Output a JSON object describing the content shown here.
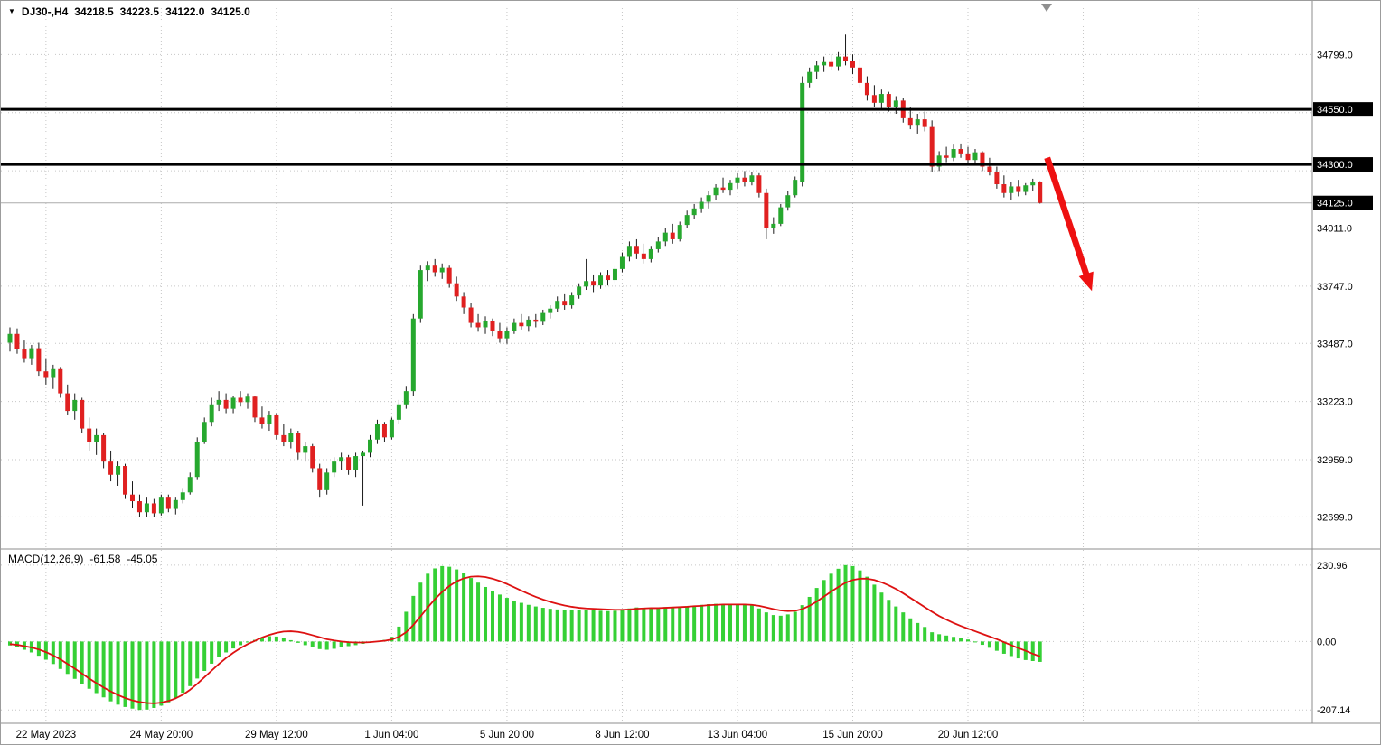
{
  "title_bar": {
    "dropdown_icon": "▼",
    "symbol_timeframe": "DJ30-,H4",
    "open": "34218.5",
    "high": "34223.5",
    "low": "34122.0",
    "close": "34125.0"
  },
  "macd_label": {
    "name": "MACD(12,26,9)",
    "macd_value": "-61.58",
    "signal_value": "-45.05"
  },
  "colors": {
    "bull": "#26a82e",
    "bear": "#e02020",
    "wick": "#1a1a1a",
    "hist": "#35d035",
    "signal_line": "#dd1111",
    "grid": "#c6c6c6",
    "hline": "#000000",
    "badge_bg": "#000000",
    "badge_text": "#ffffff",
    "axis_text": "#000000",
    "current_price_line": "#ababab",
    "arrow": "#ee1111",
    "border": "#8c8c8c"
  },
  "chart_data": {
    "type": "candlestick",
    "symbol": "DJ30-",
    "timeframe": "H4",
    "title": "DJ30-,H4 34218.5 34223.5 34122.0 34125.0",
    "price_axis": {
      "ylim": [
        32565,
        35010
      ],
      "tick_labels": [
        34799.0,
        34011.0,
        33747.0,
        33487.0,
        33223.0,
        32959.0,
        32699.0
      ],
      "grid_levels": [
        34799,
        34535,
        34271,
        34011,
        33747,
        33487,
        33223,
        32959,
        32699
      ],
      "badge_levels": [
        34550.0,
        34300.0,
        34125.0
      ]
    },
    "levels": {
      "resistance": 34550.0,
      "support": 34300.0,
      "current_price": 34125.0
    },
    "time_axis": {
      "tick_labels": [
        "22 May 2023",
        "24 May 20:00",
        "29 May 12:00",
        "1 Jun 04:00",
        "5 Jun 20:00",
        "8 Jun 12:00",
        "13 Jun 04:00",
        "15 Jun 20:00",
        "20 Jun 12:00"
      ],
      "tick_bars": [
        5,
        21,
        37,
        53,
        69,
        85,
        101,
        117,
        133
      ],
      "future_grid_bars": [
        149,
        165
      ]
    },
    "candles": [
      [
        33490,
        33560,
        33450,
        33530
      ],
      [
        33530,
        33555,
        33440,
        33460
      ],
      [
        33460,
        33500,
        33400,
        33420
      ],
      [
        33420,
        33480,
        33390,
        33465
      ],
      [
        33465,
        33490,
        33340,
        33360
      ],
      [
        33360,
        33420,
        33300,
        33330
      ],
      [
        33330,
        33390,
        33280,
        33370
      ],
      [
        33370,
        33380,
        33240,
        33260
      ],
      [
        33260,
        33300,
        33160,
        33180
      ],
      [
        33180,
        33260,
        33140,
        33230
      ],
      [
        33230,
        33240,
        33080,
        33100
      ],
      [
        33100,
        33150,
        33000,
        33040
      ],
      [
        33040,
        33100,
        32980,
        33070
      ],
      [
        33070,
        33080,
        32920,
        32950
      ],
      [
        32950,
        33000,
        32860,
        32890
      ],
      [
        32890,
        32950,
        32840,
        32930
      ],
      [
        32930,
        32940,
        32780,
        32800
      ],
      [
        32800,
        32860,
        32740,
        32770
      ],
      [
        32770,
        32800,
        32700,
        32720
      ],
      [
        32720,
        32790,
        32699,
        32760
      ],
      [
        32760,
        32780,
        32700,
        32715
      ],
      [
        32715,
        32800,
        32705,
        32790
      ],
      [
        32790,
        32800,
        32720,
        32735
      ],
      [
        32735,
        32790,
        32710,
        32775
      ],
      [
        32775,
        32830,
        32760,
        32810
      ],
      [
        32810,
        32900,
        32800,
        32880
      ],
      [
        32880,
        33060,
        32870,
        33040
      ],
      [
        33040,
        33150,
        33030,
        33130
      ],
      [
        33130,
        33240,
        33110,
        33210
      ],
      [
        33210,
        33270,
        33180,
        33230
      ],
      [
        33230,
        33260,
        33170,
        33190
      ],
      [
        33190,
        33250,
        33170,
        33240
      ],
      [
        33240,
        33270,
        33200,
        33220
      ],
      [
        33220,
        33260,
        33190,
        33245
      ],
      [
        33245,
        33250,
        33130,
        33150
      ],
      [
        33150,
        33200,
        33100,
        33120
      ],
      [
        33120,
        33180,
        33090,
        33160
      ],
      [
        33160,
        33170,
        33050,
        33070
      ],
      [
        33070,
        33120,
        33020,
        33040
      ],
      [
        33040,
        33100,
        33010,
        33080
      ],
      [
        33080,
        33090,
        32960,
        32990
      ],
      [
        32990,
        33040,
        32950,
        33020
      ],
      [
        33020,
        33030,
        32900,
        32920
      ],
      [
        32920,
        32940,
        32790,
        32820
      ],
      [
        32820,
        32920,
        32800,
        32900
      ],
      [
        32900,
        32970,
        32880,
        32950
      ],
      [
        32950,
        32990,
        32910,
        32970
      ],
      [
        32970,
        32980,
        32890,
        32910
      ],
      [
        32910,
        32990,
        32880,
        32975
      ],
      [
        32975,
        33000,
        32750,
        32990
      ],
      [
        32990,
        33070,
        32970,
        33050
      ],
      [
        33050,
        33140,
        33030,
        33120
      ],
      [
        33120,
        33130,
        33040,
        33060
      ],
      [
        33060,
        33150,
        33050,
        33140
      ],
      [
        33140,
        33230,
        33120,
        33210
      ],
      [
        33210,
        33290,
        33190,
        33270
      ],
      [
        33270,
        33620,
        33250,
        33600
      ],
      [
        33600,
        33840,
        33580,
        33820
      ],
      [
        33820,
        33860,
        33770,
        33840
      ],
      [
        33840,
        33870,
        33790,
        33810
      ],
      [
        33810,
        33850,
        33780,
        33830
      ],
      [
        33830,
        33840,
        33740,
        33760
      ],
      [
        33760,
        33790,
        33680,
        33700
      ],
      [
        33700,
        33720,
        33620,
        33650
      ],
      [
        33650,
        33670,
        33560,
        33580
      ],
      [
        33580,
        33620,
        33540,
        33560
      ],
      [
        33560,
        33610,
        33530,
        33590
      ],
      [
        33590,
        33600,
        33520,
        33545
      ],
      [
        33545,
        33580,
        33490,
        33510
      ],
      [
        33510,
        33560,
        33485,
        33545
      ],
      [
        33545,
        33600,
        33530,
        33580
      ],
      [
        33580,
        33620,
        33550,
        33565
      ],
      [
        33565,
        33610,
        33540,
        33595
      ],
      [
        33595,
        33620,
        33560,
        33585
      ],
      [
        33585,
        33640,
        33570,
        33625
      ],
      [
        33625,
        33660,
        33600,
        33645
      ],
      [
        33645,
        33700,
        33630,
        33680
      ],
      [
        33680,
        33710,
        33640,
        33660
      ],
      [
        33660,
        33720,
        33645,
        33705
      ],
      [
        33705,
        33760,
        33690,
        33745
      ],
      [
        33745,
        33870,
        33730,
        33770
      ],
      [
        33770,
        33800,
        33720,
        33750
      ],
      [
        33750,
        33810,
        33735,
        33795
      ],
      [
        33795,
        33820,
        33750,
        33775
      ],
      [
        33775,
        33840,
        33760,
        33825
      ],
      [
        33825,
        33900,
        33810,
        33880
      ],
      [
        33880,
        33950,
        33860,
        33930
      ],
      [
        33930,
        33960,
        33870,
        33895
      ],
      [
        33895,
        33940,
        33850,
        33870
      ],
      [
        33870,
        33930,
        33855,
        33915
      ],
      [
        33915,
        33970,
        33900,
        33950
      ],
      [
        33950,
        34010,
        33930,
        33990
      ],
      [
        33990,
        34030,
        33940,
        33960
      ],
      [
        33960,
        34040,
        33950,
        34025
      ],
      [
        34025,
        34090,
        34010,
        34070
      ],
      [
        34070,
        34120,
        34050,
        34100
      ],
      [
        34100,
        34150,
        34080,
        34130
      ],
      [
        34130,
        34180,
        34100,
        34160
      ],
      [
        34160,
        34210,
        34140,
        34195
      ],
      [
        34195,
        34240,
        34170,
        34185
      ],
      [
        34185,
        34230,
        34160,
        34215
      ],
      [
        34215,
        34260,
        34190,
        34240
      ],
      [
        34240,
        34270,
        34200,
        34220
      ],
      [
        34220,
        34265,
        34205,
        34250
      ],
      [
        34250,
        34260,
        34150,
        34170
      ],
      [
        34170,
        34190,
        33960,
        34010
      ],
      [
        34010,
        34060,
        33985,
        34030
      ],
      [
        34030,
        34120,
        34020,
        34105
      ],
      [
        34105,
        34180,
        34090,
        34160
      ],
      [
        34160,
        34245,
        34150,
        34230
      ],
      [
        34220,
        34700,
        34200,
        34670
      ],
      [
        34670,
        34740,
        34650,
        34720
      ],
      [
        34720,
        34770,
        34690,
        34750
      ],
      [
        34750,
        34790,
        34720,
        34765
      ],
      [
        34765,
        34800,
        34730,
        34745
      ],
      [
        34745,
        34810,
        34725,
        34790
      ],
      [
        34790,
        34890,
        34750,
        34770
      ],
      [
        34770,
        34800,
        34710,
        34740
      ],
      [
        34740,
        34780,
        34650,
        34670
      ],
      [
        34670,
        34700,
        34590,
        34615
      ],
      [
        34615,
        34660,
        34560,
        34580
      ],
      [
        34580,
        34640,
        34555,
        34620
      ],
      [
        34620,
        34630,
        34540,
        34560
      ],
      [
        34560,
        34610,
        34530,
        34590
      ],
      [
        34590,
        34600,
        34490,
        34510
      ],
      [
        34510,
        34560,
        34460,
        34480
      ],
      [
        34480,
        34530,
        34440,
        34505
      ],
      [
        34505,
        34540,
        34450,
        34470
      ],
      [
        34470,
        34500,
        34265,
        34290
      ],
      [
        34290,
        34360,
        34270,
        34340
      ],
      [
        34340,
        34380,
        34310,
        34330
      ],
      [
        34330,
        34390,
        34315,
        34370
      ],
      [
        34370,
        34395,
        34330,
        34350
      ],
      [
        34350,
        34380,
        34300,
        34320
      ],
      [
        34320,
        34370,
        34295,
        34355
      ],
      [
        34355,
        34360,
        34270,
        34290
      ],
      [
        34290,
        34330,
        34250,
        34265
      ],
      [
        34265,
        34290,
        34190,
        34210
      ],
      [
        34210,
        34250,
        34150,
        34170
      ],
      [
        34170,
        34220,
        34140,
        34200
      ],
      [
        34200,
        34230,
        34155,
        34175
      ],
      [
        34175,
        34215,
        34160,
        34205
      ],
      [
        34205,
        34235,
        34180,
        34218
      ],
      [
        34218.5,
        34223.5,
        34122.0,
        34125.0
      ]
    ],
    "macd": {
      "params": "12,26,9",
      "ylim": [
        -242,
        266
      ],
      "tick_values": [
        230.96,
        0,
        -207.14
      ],
      "hist": [
        -12,
        -18,
        -25,
        -33,
        -43,
        -55,
        -68,
        -83,
        -98,
        -113,
        -128,
        -143,
        -156,
        -169,
        -181,
        -191,
        -198,
        -203,
        -207,
        -206,
        -201,
        -194,
        -184,
        -171,
        -155,
        -135,
        -112,
        -89,
        -67,
        -48,
        -33,
        -21,
        -11,
        -3,
        5,
        12,
        16,
        15,
        10,
        4,
        -4,
        -11,
        -17,
        -23,
        -25,
        -22,
        -18,
        -14,
        -11,
        -7,
        -3,
        1,
        5,
        14,
        45,
        90,
        138,
        178,
        205,
        221,
        228,
        226,
        218,
        206,
        192,
        178,
        165,
        153,
        142,
        132,
        124,
        117,
        111,
        106,
        102,
        99,
        97,
        95,
        94,
        94,
        95,
        94,
        93,
        92,
        93,
        96,
        100,
        103,
        102,
        101,
        102,
        104,
        104,
        105,
        107,
        109,
        111,
        113,
        114,
        113,
        112,
        112,
        111,
        109,
        100,
        88,
        80,
        78,
        82,
        90,
        110,
        135,
        162,
        186,
        205,
        220,
        231,
        228,
        215,
        196,
        172,
        148,
        126,
        106,
        88,
        70,
        56,
        44,
        28,
        22,
        18,
        14,
        10,
        6,
        -2,
        -10,
        -19,
        -28,
        -37,
        -44,
        -51,
        -56,
        -59,
        -61.58
      ],
      "signal": [
        -8,
        -10,
        -14,
        -18,
        -24,
        -32,
        -42,
        -54,
        -68,
        -82,
        -97,
        -112,
        -126,
        -139,
        -151,
        -162,
        -171,
        -178,
        -183,
        -186,
        -187,
        -185,
        -180,
        -172,
        -161,
        -146,
        -128,
        -108,
        -88,
        -68,
        -50,
        -34,
        -20,
        -8,
        2,
        12,
        20,
        26,
        30,
        31,
        29,
        25,
        19,
        13,
        7,
        3,
        0,
        -2,
        -3,
        -3,
        -2,
        0,
        2,
        6,
        14,
        28,
        50,
        76,
        103,
        128,
        150,
        168,
        182,
        191,
        196,
        197,
        195,
        190,
        183,
        174,
        164,
        154,
        144,
        135,
        127,
        120,
        114,
        109,
        105,
        102,
        100,
        99,
        98,
        97,
        96,
        96,
        97,
        99,
        100,
        101,
        101,
        102,
        103,
        104,
        105,
        107,
        108,
        110,
        111,
        112,
        112,
        112,
        112,
        111,
        108,
        103,
        98,
        94,
        92,
        93,
        98,
        108,
        121,
        136,
        151,
        165,
        178,
        186,
        190,
        190,
        186,
        179,
        170,
        159,
        146,
        132,
        118,
        104,
        90,
        77,
        66,
        56,
        47,
        39,
        31,
        23,
        15,
        7,
        -2,
        -11,
        -20,
        -28,
        -37,
        -45.05
      ]
    },
    "arrow": {
      "from_bar": 144,
      "from_price": 34330,
      "to_bar": 150.2,
      "to_price": 33725
    }
  }
}
